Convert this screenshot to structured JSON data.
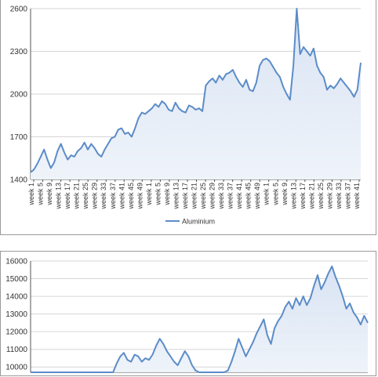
{
  "chart_data": [
    {
      "type": "area",
      "y_ticks": [
        1400,
        1700,
        2000,
        2300,
        2600
      ],
      "ylim": [
        1400,
        2600
      ],
      "x_tick_labels": [
        "week 1",
        "week 5",
        "week 9",
        "week 13",
        "week 17",
        "week 21",
        "week 25",
        "week 29",
        "week 33",
        "week 37",
        "week 41",
        "week 45",
        "week 49",
        "week 1",
        "week 5",
        "week 9",
        "week 13",
        "week 17",
        "week 21",
        "week 25",
        "week 29",
        "week 33",
        "week 37",
        "week 41",
        "week 45",
        "week 49",
        "week 1",
        "week 5",
        "week 9",
        "week 13",
        "week 17",
        "week 21",
        "week 25",
        "week 29",
        "week 33",
        "week 37",
        "week 41"
      ],
      "series": [
        {
          "name": "Aluminium",
          "color": "#5b8cc8",
          "values": [
            1450,
            1470,
            1510,
            1560,
            1610,
            1540,
            1480,
            1520,
            1600,
            1650,
            1590,
            1540,
            1570,
            1560,
            1600,
            1620,
            1660,
            1610,
            1650,
            1620,
            1580,
            1560,
            1610,
            1650,
            1690,
            1700,
            1750,
            1760,
            1720,
            1730,
            1700,
            1760,
            1830,
            1870,
            1860,
            1880,
            1900,
            1930,
            1910,
            1950,
            1930,
            1890,
            1880,
            1940,
            1900,
            1880,
            1870,
            1920,
            1910,
            1890,
            1900,
            1880,
            2060,
            2090,
            2110,
            2080,
            2130,
            2100,
            2140,
            2150,
            2170,
            2120,
            2080,
            2050,
            2100,
            2030,
            2020,
            2080,
            2200,
            2240,
            2250,
            2230,
            2190,
            2150,
            2120,
            2050,
            2000,
            1960,
            2200,
            2600,
            2280,
            2330,
            2300,
            2270,
            2320,
            2200,
            2150,
            2120,
            2030,
            2060,
            2040,
            2070,
            2110,
            2080,
            2050,
            2020,
            1980,
            2030,
            2220
          ]
        }
      ],
      "legend": "bottom-center"
    },
    {
      "type": "area",
      "y_ticks": [
        10000,
        11000,
        12000,
        13000,
        14000,
        15000,
        16000
      ],
      "ylim": [
        9700,
        16000
      ],
      "series": [
        {
          "color": "#5b8cc8",
          "values": [
            9700,
            9700,
            9700,
            9700,
            9700,
            9700,
            9700,
            9700,
            9700,
            9700,
            9700,
            9700,
            9700,
            9700,
            9700,
            9700,
            9700,
            9700,
            9700,
            9700,
            9700,
            9700,
            9700,
            9700,
            10200,
            10600,
            10800,
            10400,
            10300,
            10700,
            10600,
            10300,
            10500,
            10400,
            10700,
            11200,
            11600,
            11300,
            10900,
            10600,
            10300,
            10100,
            10500,
            10900,
            10600,
            10100,
            9800,
            9700,
            9700,
            9700,
            9700,
            9700,
            9700,
            9700,
            9700,
            9800,
            10300,
            10900,
            11600,
            11100,
            10600,
            11000,
            11400,
            11900,
            12300,
            12700,
            11800,
            11300,
            12200,
            12600,
            12900,
            13400,
            13700,
            13300,
            13900,
            13500,
            14000,
            13500,
            13900,
            14600,
            15200,
            14400,
            14800,
            15300,
            15700,
            15100,
            14600,
            14000,
            13300,
            13600,
            13100,
            12800,
            12400,
            12900,
            12500
          ]
        }
      ]
    }
  ]
}
